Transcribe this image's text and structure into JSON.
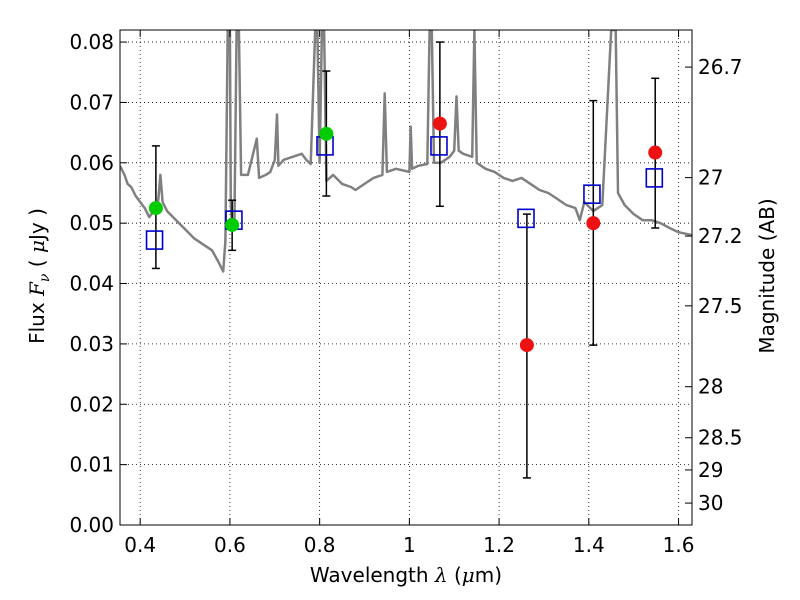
{
  "chart_data": {
    "type": "scatter",
    "xlabel": {
      "prefix": "Wavelength  ",
      "symbol": "λ",
      "unit_open": " (",
      "unit_mu": "μ",
      "unit_rest": "m)"
    },
    "ylabel": {
      "prefix": "Flux  ",
      "symbol": "F",
      "sub": "ν",
      "unit_open": "  (  ",
      "unit_mu": "μ",
      "unit_rest": "Jy  )"
    },
    "y2label": "Magnitude (AB)",
    "xlim": [
      0.355,
      1.63
    ],
    "ylim": [
      0.0,
      0.082
    ],
    "grid": true,
    "x_ticks": [
      {
        "value": 0.4,
        "label": "0.4"
      },
      {
        "value": 0.6,
        "label": "0.6"
      },
      {
        "value": 0.8,
        "label": "0.8"
      },
      {
        "value": 1.0,
        "label": "1"
      },
      {
        "value": 1.2,
        "label": "1.2"
      },
      {
        "value": 1.4,
        "label": "1.4"
      },
      {
        "value": 1.6,
        "label": "1.6"
      }
    ],
    "y_ticks": [
      {
        "value": 0.0,
        "label": "0.00"
      },
      {
        "value": 0.01,
        "label": "0.01"
      },
      {
        "value": 0.02,
        "label": "0.02"
      },
      {
        "value": 0.03,
        "label": "0.03"
      },
      {
        "value": 0.04,
        "label": "0.04"
      },
      {
        "value": 0.05,
        "label": "0.05"
      },
      {
        "value": 0.06,
        "label": "0.06"
      },
      {
        "value": 0.07,
        "label": "0.07"
      },
      {
        "value": 0.08,
        "label": "0.08"
      }
    ],
    "y2_ticks": [
      {
        "value": 26.7,
        "label": "26.7"
      },
      {
        "value": 27.0,
        "label": "27"
      },
      {
        "value": 27.2,
        "label": "27.2"
      },
      {
        "value": 27.5,
        "label": "27.5"
      },
      {
        "value": 28.0,
        "label": "28"
      },
      {
        "value": 28.5,
        "label": "28.5"
      },
      {
        "value": 29.0,
        "label": "29"
      },
      {
        "value": 30.0,
        "label": "30"
      }
    ],
    "colors": {
      "spectrum": "#808080",
      "green_points": "#00cc00",
      "red_points": "#ee1111",
      "model_squares": "#0000cc",
      "errorbars": "#000000"
    },
    "spectrum": [
      [
        0.355,
        0.0595
      ],
      [
        0.365,
        0.058
      ],
      [
        0.372,
        0.0565
      ],
      [
        0.38,
        0.056
      ],
      [
        0.39,
        0.0545
      ],
      [
        0.4,
        0.0535
      ],
      [
        0.41,
        0.0525
      ],
      [
        0.42,
        0.051
      ],
      [
        0.43,
        0.052
      ],
      [
        0.44,
        0.0535
      ],
      [
        0.445,
        0.058
      ],
      [
        0.45,
        0.0535
      ],
      [
        0.46,
        0.052
      ],
      [
        0.48,
        0.0505
      ],
      [
        0.5,
        0.049
      ],
      [
        0.52,
        0.0475
      ],
      [
        0.54,
        0.0465
      ],
      [
        0.56,
        0.0455
      ],
      [
        0.575,
        0.0435
      ],
      [
        0.585,
        0.042
      ],
      [
        0.59,
        0.047
      ],
      [
        0.595,
        0.082
      ],
      [
        0.6,
        0.082
      ],
      [
        0.602,
        0.053
      ],
      [
        0.605,
        0.0495
      ],
      [
        0.61,
        0.05
      ],
      [
        0.615,
        0.082
      ],
      [
        0.62,
        0.082
      ],
      [
        0.625,
        0.058
      ],
      [
        0.64,
        0.058
      ],
      [
        0.66,
        0.064
      ],
      [
        0.665,
        0.0575
      ],
      [
        0.68,
        0.058
      ],
      [
        0.69,
        0.0585
      ],
      [
        0.7,
        0.0605
      ],
      [
        0.705,
        0.068
      ],
      [
        0.708,
        0.0595
      ],
      [
        0.72,
        0.0605
      ],
      [
        0.74,
        0.061
      ],
      [
        0.76,
        0.0615
      ],
      [
        0.77,
        0.0605
      ],
      [
        0.78,
        0.0598
      ],
      [
        0.79,
        0.082
      ],
      [
        0.795,
        0.082
      ],
      [
        0.8,
        0.06
      ],
      [
        0.805,
        0.082
      ],
      [
        0.81,
        0.082
      ],
      [
        0.815,
        0.057
      ],
      [
        0.83,
        0.058
      ],
      [
        0.85,
        0.0565
      ],
      [
        0.87,
        0.056
      ],
      [
        0.88,
        0.0555
      ],
      [
        0.9,
        0.0565
      ],
      [
        0.92,
        0.0575
      ],
      [
        0.94,
        0.058
      ],
      [
        0.945,
        0.0715
      ],
      [
        0.95,
        0.0585
      ],
      [
        0.97,
        0.059
      ],
      [
        1.0,
        0.0585
      ],
      [
        1.003,
        0.066
      ],
      [
        1.006,
        0.059
      ],
      [
        1.02,
        0.0595
      ],
      [
        1.04,
        0.0598
      ],
      [
        1.045,
        0.082
      ],
      [
        1.05,
        0.082
      ],
      [
        1.055,
        0.06
      ],
      [
        1.07,
        0.06
      ],
      [
        1.09,
        0.061
      ],
      [
        1.1,
        0.062
      ],
      [
        1.105,
        0.071
      ],
      [
        1.11,
        0.062
      ],
      [
        1.12,
        0.0615
      ],
      [
        1.14,
        0.061
      ],
      [
        1.145,
        0.082
      ],
      [
        1.15,
        0.06
      ],
      [
        1.17,
        0.059
      ],
      [
        1.19,
        0.0585
      ],
      [
        1.21,
        0.0575
      ],
      [
        1.23,
        0.057
      ],
      [
        1.25,
        0.0575
      ],
      [
        1.27,
        0.0565
      ],
      [
        1.29,
        0.0555
      ],
      [
        1.31,
        0.055
      ],
      [
        1.33,
        0.054
      ],
      [
        1.35,
        0.053
      ],
      [
        1.37,
        0.0525
      ],
      [
        1.38,
        0.0505
      ],
      [
        1.39,
        0.0535
      ],
      [
        1.41,
        0.052
      ],
      [
        1.43,
        0.053
      ],
      [
        1.45,
        0.082
      ],
      [
        1.46,
        0.082
      ],
      [
        1.465,
        0.055
      ],
      [
        1.48,
        0.053
      ],
      [
        1.5,
        0.0515
      ],
      [
        1.52,
        0.0505
      ],
      [
        1.54,
        0.0505
      ],
      [
        1.56,
        0.05
      ],
      [
        1.58,
        0.0492
      ],
      [
        1.6,
        0.0485
      ],
      [
        1.63,
        0.048
      ]
    ],
    "green_points": [
      {
        "x": 0.435,
        "y": 0.0525,
        "yerr_low": 0.0425,
        "yerr_high": 0.0628
      },
      {
        "x": 0.605,
        "y": 0.0497,
        "yerr_low": 0.0455,
        "yerr_high": 0.0538
      },
      {
        "x": 0.815,
        "y": 0.0648,
        "yerr_low": 0.0545,
        "yerr_high": 0.0752
      }
    ],
    "red_points": [
      {
        "x": 1.068,
        "y": 0.0665,
        "yerr_low": 0.0528,
        "yerr_high": 0.08
      },
      {
        "x": 1.262,
        "y": 0.0298,
        "yerr_low": 0.0078,
        "yerr_high": 0.0515
      },
      {
        "x": 1.41,
        "y": 0.05,
        "yerr_low": 0.0298,
        "yerr_high": 0.0703
      },
      {
        "x": 1.548,
        "y": 0.0617,
        "yerr_low": 0.0492,
        "yerr_high": 0.074
      }
    ],
    "model_squares": [
      {
        "x": 0.432,
        "y": 0.0472
      },
      {
        "x": 0.609,
        "y": 0.0505
      },
      {
        "x": 0.812,
        "y": 0.0628
      },
      {
        "x": 1.066,
        "y": 0.0628
      },
      {
        "x": 1.26,
        "y": 0.0508
      },
      {
        "x": 1.407,
        "y": 0.0548
      },
      {
        "x": 1.546,
        "y": 0.0575
      }
    ]
  }
}
